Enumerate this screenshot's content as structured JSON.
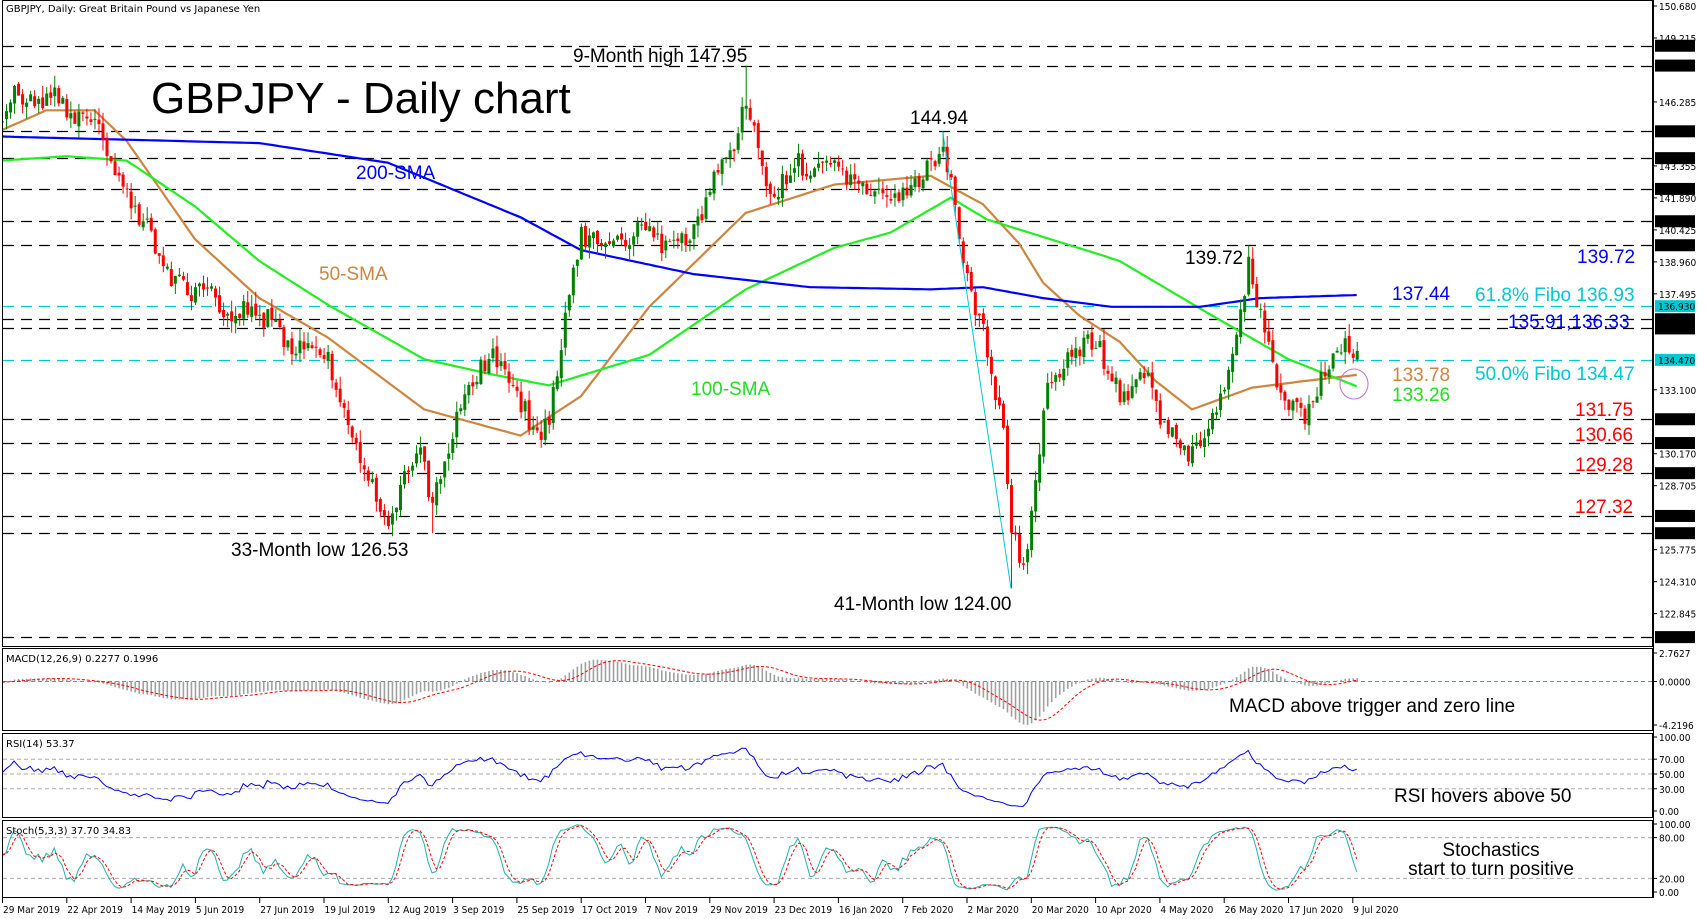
{
  "header": "GBPJPY, Daily:  Great Britain Pound vs Japanese Yen",
  "title": "GBPJPY - Daily chart",
  "colors": {
    "bull_candle": "#008000",
    "bear_candle": "#ff0000",
    "sma50": "#cd853f",
    "sma100": "#22ee22",
    "sma200": "#0000ff",
    "fibo": "#00c8d0",
    "support": "#ff0000",
    "stoch_main": "#20b2aa",
    "stoch_signal": "#ff0000",
    "rsi": "#0000ff",
    "macd_hist": "#a0a0a0",
    "macd_signal": "#ff0000"
  },
  "annotations": {
    "high_9m": "9-Month high 147.95",
    "peak_feb": "144.94",
    "peak_jun": "139.72",
    "low_33m": "33-Month low 126.53",
    "low_41m": "41-Month low 124.00",
    "sma200_label": "200-SMA",
    "sma50_label": "50-SMA",
    "sma100_label": "100-SMA",
    "right_139": "139.72",
    "right_sma200": "137.44",
    "fibo_618": "61.8% Fibo 136.93",
    "range_label": "135.91,136.33",
    "right_sma50": "133.78",
    "right_sma100": "133.26",
    "fibo_50": "50.0% Fibo 134.47",
    "s1": "131.75",
    "s2": "130.66",
    "s3": "129.28",
    "s4": "127.32",
    "macd_note": "MACD above trigger and zero line",
    "rsi_note": "RSI hovers above 50",
    "stoch_note_1": "Stochastics",
    "stoch_note_2": "start to turn positive"
  },
  "chart_data": {
    "type": "candlestick",
    "title": "GBPJPY - Daily chart",
    "ylim": [
      121.5,
      150.68
    ],
    "x_ticks": [
      "29 Mar 2019",
      "22 Apr 2019",
      "14 May 2019",
      "5 Jun 2019",
      "27 Jun 2019",
      "19 Jul 2019",
      "12 Aug 2019",
      "3 Sep 2019",
      "25 Sep 2019",
      "17 Oct 2019",
      "7 Nov 2019",
      "29 Nov 2019",
      "23 Dec 2019",
      "16 Jan 2020",
      "7 Feb 2020",
      "2 Mar 2020",
      "20 Mar 2020",
      "10 Apr 2020",
      "4 May 2020",
      "26 May 2020",
      "17 Jun 2020",
      "9 Jul 2020"
    ],
    "y_ticks": [
      "150.680",
      "149.215",
      "146.285",
      "143.355",
      "141.890",
      "140.425",
      "138.960",
      "137.495",
      "133.100",
      "130.170",
      "128.705",
      "125.775",
      "124.310",
      "122.845"
    ],
    "levels": [
      148.86,
      147.95,
      144.94,
      143.71,
      142.3,
      140.82,
      139.72,
      136.33,
      135.91,
      131.75,
      130.66,
      129.28,
      127.32,
      126.53,
      121.77
    ],
    "level_labels": [
      "148.860",
      "147.950",
      "144.940",
      "143.710",
      "142.300",
      "140.820",
      "139.720",
      "136.330",
      "135.910",
      "131.750",
      "130.660",
      "129.280",
      "127.320",
      "126.530",
      "121.770"
    ],
    "fibo_levels": [
      136.93,
      134.47
    ],
    "fibo_labels": [
      "136.930",
      "134.470"
    ],
    "fibo_swing": [
      [
        "2020-02-20",
        144.94
      ],
      [
        "2020-03-16",
        124.0
      ]
    ],
    "extremes": [
      [
        "2019-12-13",
        "high",
        147.95
      ],
      [
        "2020-02-20",
        "high",
        144.94
      ],
      [
        "2020-06-05",
        "high",
        139.72
      ],
      [
        "2020-03-16",
        "low",
        124.0
      ],
      [
        "2019-08-27",
        "low",
        126.53
      ]
    ],
    "close_path": [
      [
        "2019-03-29",
        145.3
      ],
      [
        "2019-04-03",
        146.8
      ],
      [
        "2019-04-10",
        146.0
      ],
      [
        "2019-04-17",
        146.5
      ],
      [
        "2019-04-24",
        145.2
      ],
      [
        "2019-04-30",
        145.8
      ],
      [
        "2019-05-07",
        143.8
      ],
      [
        "2019-05-13",
        141.8
      ],
      [
        "2019-05-20",
        140.5
      ],
      [
        "2019-05-27",
        138.5
      ],
      [
        "2019-06-03",
        137.5
      ],
      [
        "2019-06-10",
        137.8
      ],
      [
        "2019-06-17",
        136.6
      ],
      [
        "2019-06-24",
        136.8
      ],
      [
        "2019-07-01",
        136.3
      ],
      [
        "2019-07-08",
        135.3
      ],
      [
        "2019-07-15",
        134.8
      ],
      [
        "2019-07-22",
        134.6
      ],
      [
        "2019-07-29",
        131.5
      ],
      [
        "2019-08-02",
        129.5
      ],
      [
        "2019-08-08",
        128.0
      ],
      [
        "2019-08-12",
        126.9
      ],
      [
        "2019-08-16",
        129.0
      ],
      [
        "2019-08-22",
        130.0
      ],
      [
        "2019-08-27",
        128.0
      ],
      [
        "2019-08-30",
        129.5
      ],
      [
        "2019-09-04",
        132.0
      ],
      [
        "2019-09-10",
        133.3
      ],
      [
        "2019-09-16",
        134.8
      ],
      [
        "2019-09-20",
        134.0
      ],
      [
        "2019-09-26",
        132.5
      ],
      [
        "2019-10-02",
        131.0
      ],
      [
        "2019-10-07",
        131.8
      ],
      [
        "2019-10-11",
        136.5
      ],
      [
        "2019-10-17",
        140.3
      ],
      [
        "2019-10-24",
        139.5
      ],
      [
        "2019-10-31",
        139.8
      ],
      [
        "2019-11-07",
        140.5
      ],
      [
        "2019-11-14",
        139.8
      ],
      [
        "2019-11-21",
        140.0
      ],
      [
        "2019-11-28",
        141.0
      ],
      [
        "2019-12-04",
        143.2
      ],
      [
        "2019-12-10",
        144.0
      ],
      [
        "2019-12-13",
        146.5
      ],
      [
        "2019-12-18",
        144.0
      ],
      [
        "2019-12-23",
        141.8
      ],
      [
        "2019-12-31",
        143.6
      ],
      [
        "2020-01-07",
        143.0
      ],
      [
        "2020-01-14",
        143.2
      ],
      [
        "2020-01-21",
        142.7
      ],
      [
        "2020-01-28",
        142.0
      ],
      [
        "2020-02-04",
        141.8
      ],
      [
        "2020-02-11",
        142.5
      ],
      [
        "2020-02-17",
        143.5
      ],
      [
        "2020-02-20",
        144.5
      ],
      [
        "2020-02-25",
        141.5
      ],
      [
        "2020-02-28",
        138.0
      ],
      [
        "2020-03-04",
        136.5
      ],
      [
        "2020-03-09",
        134.0
      ],
      [
        "2020-03-12",
        131.0
      ],
      [
        "2020-03-16",
        126.5
      ],
      [
        "2020-03-19",
        125.0
      ],
      [
        "2020-03-24",
        128.5
      ],
      [
        "2020-03-27",
        133.5
      ],
      [
        "2020-04-01",
        134.0
      ],
      [
        "2020-04-07",
        134.8
      ],
      [
        "2020-04-14",
        135.5
      ],
      [
        "2020-04-20",
        133.5
      ],
      [
        "2020-04-24",
        132.5
      ],
      [
        "2020-04-30",
        134.0
      ],
      [
        "2020-05-06",
        131.8
      ],
      [
        "2020-05-12",
        131.0
      ],
      [
        "2020-05-15",
        130.0
      ],
      [
        "2020-05-21",
        131.0
      ],
      [
        "2020-05-26",
        132.5
      ],
      [
        "2020-06-01",
        134.5
      ],
      [
        "2020-06-05",
        138.8
      ],
      [
        "2020-06-10",
        136.5
      ],
      [
        "2020-06-15",
        134.0
      ],
      [
        "2020-06-19",
        132.5
      ],
      [
        "2020-06-25",
        132.0
      ],
      [
        "2020-06-30",
        133.0
      ],
      [
        "2020-07-03",
        134.5
      ],
      [
        "2020-07-08",
        135.2
      ],
      [
        "2020-07-14",
        134.6
      ]
    ],
    "series": [
      {
        "name": "50-SMA",
        "points": [
          [
            "2019-03-29",
            145.0
          ],
          [
            "2019-04-15",
            145.9
          ],
          [
            "2019-05-01",
            145.9
          ],
          [
            "2019-05-13",
            144.5
          ],
          [
            "2019-06-05",
            140.0
          ],
          [
            "2019-06-27",
            137.3
          ],
          [
            "2019-07-20",
            135.5
          ],
          [
            "2019-08-23",
            132.2
          ],
          [
            "2019-09-26",
            131.0
          ],
          [
            "2019-10-17",
            132.8
          ],
          [
            "2019-11-11",
            136.9
          ],
          [
            "2019-12-13",
            141.2
          ],
          [
            "2020-01-14",
            142.5
          ],
          [
            "2020-02-17",
            142.9
          ],
          [
            "2020-03-05",
            141.6
          ],
          [
            "2020-03-18",
            139.8
          ],
          [
            "2020-03-26",
            138.0
          ],
          [
            "2020-04-08",
            136.5
          ],
          [
            "2020-04-22",
            135.3
          ],
          [
            "2020-05-05",
            133.5
          ],
          [
            "2020-05-17",
            132.2
          ],
          [
            "2020-06-06",
            133.2
          ],
          [
            "2020-06-25",
            133.5
          ],
          [
            "2020-07-14",
            133.78
          ]
        ]
      },
      {
        "name": "100-SMA",
        "points": [
          [
            "2019-03-29",
            143.6
          ],
          [
            "2019-04-20",
            143.8
          ],
          [
            "2019-05-13",
            143.6
          ],
          [
            "2019-06-05",
            141.5
          ],
          [
            "2019-06-27",
            139.0
          ],
          [
            "2019-07-20",
            137.0
          ],
          [
            "2019-08-23",
            134.5
          ],
          [
            "2019-09-17",
            133.8
          ],
          [
            "2019-10-06",
            133.3
          ],
          [
            "2019-11-11",
            134.7
          ],
          [
            "2019-12-13",
            137.7
          ],
          [
            "2020-01-14",
            139.6
          ],
          [
            "2020-02-03",
            140.3
          ],
          [
            "2020-02-24",
            141.9
          ],
          [
            "2020-03-06",
            140.9
          ],
          [
            "2020-04-15",
            139.3
          ],
          [
            "2020-04-22",
            139.0
          ],
          [
            "2020-05-24",
            136.5
          ],
          [
            "2020-06-19",
            134.5
          ],
          [
            "2020-07-14",
            133.26
          ]
        ]
      },
      {
        "name": "200-SMA",
        "points": [
          [
            "2019-03-29",
            144.7
          ],
          [
            "2019-06-27",
            144.4
          ],
          [
            "2019-08-10",
            143.5
          ],
          [
            "2019-09-26",
            141.0
          ],
          [
            "2019-10-17",
            139.5
          ],
          [
            "2019-11-26",
            138.4
          ],
          [
            "2020-01-06",
            137.8
          ],
          [
            "2020-02-17",
            137.7
          ],
          [
            "2020-03-05",
            137.8
          ],
          [
            "2020-03-26",
            137.3
          ],
          [
            "2020-04-20",
            136.9
          ],
          [
            "2020-05-20",
            136.9
          ],
          [
            "2020-06-10",
            137.3
          ],
          [
            "2020-07-14",
            137.44
          ]
        ]
      }
    ],
    "indicators": {
      "macd": {
        "label": "MACD(12,26,9) 0.2277 0.1996",
        "ylim": [
          -4.2196,
          2.7627
        ],
        "ticks": [
          "2.7627",
          "0.0000",
          "-4.2196"
        ]
      },
      "rsi": {
        "label": "RSI(14) 53.37",
        "ylim": [
          0,
          100
        ],
        "ticks": [
          "100.00",
          "70.00",
          "50.00",
          "30.00",
          "0.00"
        ]
      },
      "stoch": {
        "label": "Stoch(5,3,3) 37.70 34.83",
        "ylim": [
          0,
          100
        ],
        "ticks": [
          "100.00",
          "80.00",
          "20.00",
          "0.00"
        ]
      }
    }
  }
}
